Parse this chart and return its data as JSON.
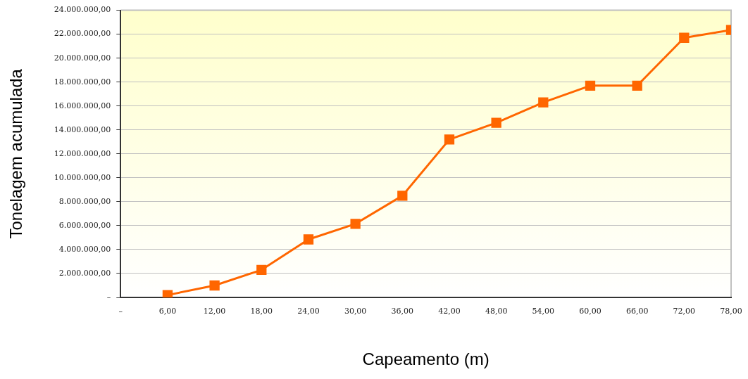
{
  "chart_data": {
    "type": "line",
    "xlabel": "Capeamento (m)",
    "ylabel": "Tonelagem acumulada",
    "x": [
      6,
      12,
      18,
      24,
      30,
      36,
      42,
      48,
      54,
      60,
      66,
      72,
      78
    ],
    "series": [
      {
        "color": "#ff6600",
        "values": [
          200000,
          1000000,
          2300000,
          4850000,
          6150000,
          8500000,
          13200000,
          14600000,
          16300000,
          17700000,
          17700000,
          21700000,
          22350000
        ]
      }
    ],
    "xlim": [
      0,
      78
    ],
    "xticks": [
      {
        "value": 0,
        "label": "–"
      },
      {
        "value": 6,
        "label": "6,00"
      },
      {
        "value": 12,
        "label": "12,00"
      },
      {
        "value": 18,
        "label": "18,00"
      },
      {
        "value": 24,
        "label": "24,00"
      },
      {
        "value": 30,
        "label": "30,00"
      },
      {
        "value": 36,
        "label": "36,00"
      },
      {
        "value": 42,
        "label": "42,00"
      },
      {
        "value": 48,
        "label": "48,00"
      },
      {
        "value": 54,
        "label": "54,00"
      },
      {
        "value": 60,
        "label": "60,00"
      },
      {
        "value": 66,
        "label": "66,00"
      },
      {
        "value": 72,
        "label": "72,00"
      },
      {
        "value": 78,
        "label": "78,00"
      }
    ],
    "ylim": [
      0,
      24000000
    ],
    "yticks": [
      {
        "value": 0,
        "label": "–"
      },
      {
        "value": 2000000,
        "label": "2.000.000,00"
      },
      {
        "value": 4000000,
        "label": "4.000.000,00"
      },
      {
        "value": 6000000,
        "label": "6.000.000,00"
      },
      {
        "value": 8000000,
        "label": "8.000.000,00"
      },
      {
        "value": 10000000,
        "label": "10.000.000,00"
      },
      {
        "value": 12000000,
        "label": "12.000.000,00"
      },
      {
        "value": 14000000,
        "label": "14.000.000,00"
      },
      {
        "value": 16000000,
        "label": "16.000.000,00"
      },
      {
        "value": 18000000,
        "label": "18.000.000,00"
      },
      {
        "value": 20000000,
        "label": "20.000.000,00"
      },
      {
        "value": 22000000,
        "label": "22.000.000,00"
      },
      {
        "value": 24000000,
        "label": "24.000.000,00"
      }
    ],
    "grid": "y",
    "marker": "square",
    "line_style": "solid",
    "legend": false
  }
}
